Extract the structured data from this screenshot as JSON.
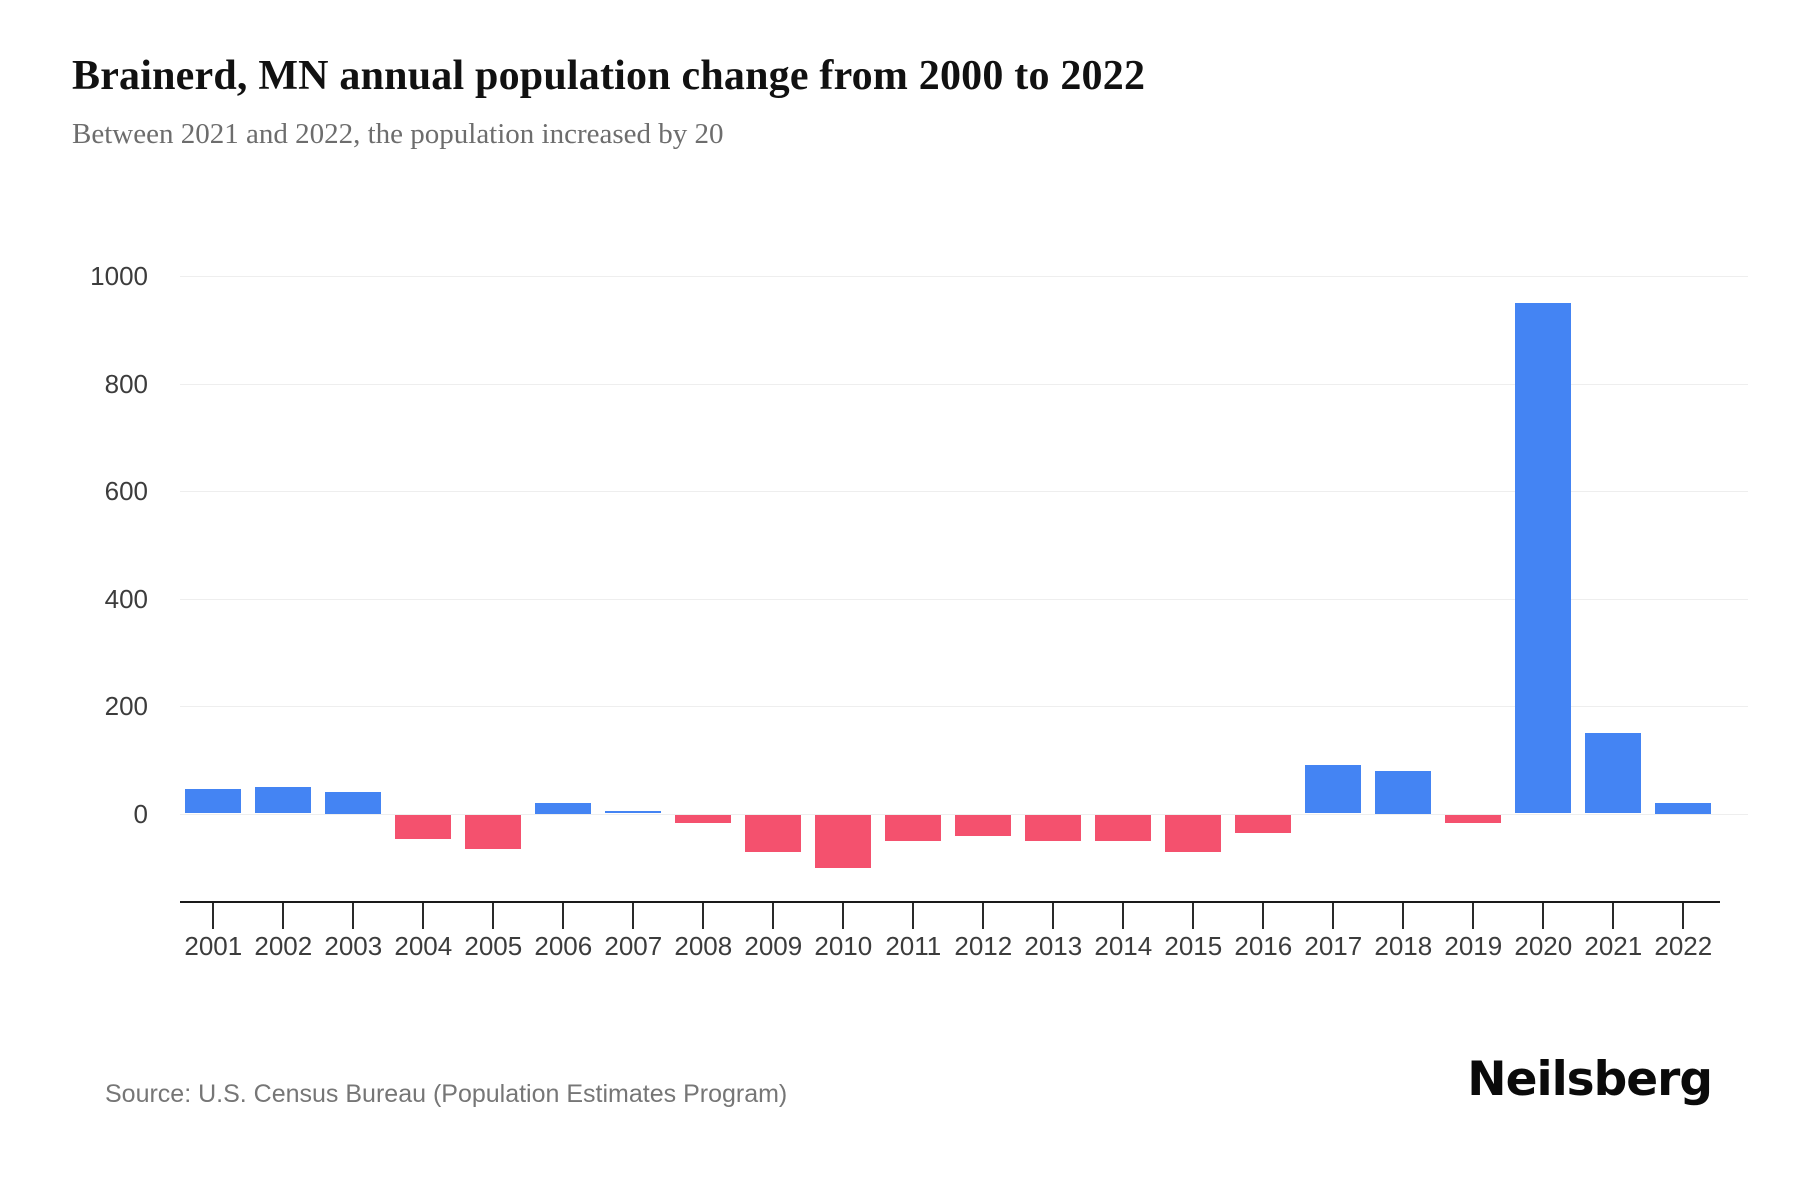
{
  "header": {
    "title": "Brainerd, MN annual population change from 2000 to 2022",
    "subtitle": "Between 2021 and 2022, the population increased by 20"
  },
  "footer": {
    "source": "Source: U.S. Census Bureau (Population Estimates Program)",
    "brand": "Neilsberg"
  },
  "chart_data": {
    "type": "bar",
    "title": "Brainerd, MN annual population change from 2000 to 2022",
    "subtitle": "Between 2021 and 2022, the population increased by 20",
    "categories": [
      "2001",
      "2002",
      "2003",
      "2004",
      "2005",
      "2006",
      "2007",
      "2008",
      "2009",
      "2010",
      "2011",
      "2012",
      "2013",
      "2014",
      "2015",
      "2016",
      "2017",
      "2018",
      "2019",
      "2020",
      "2021",
      "2022"
    ],
    "values": [
      45,
      50,
      40,
      -45,
      -65,
      20,
      5,
      -15,
      -70,
      -100,
      -50,
      -40,
      -50,
      -50,
      -70,
      -35,
      90,
      80,
      -15,
      950,
      150,
      20
    ],
    "xlabel": "",
    "ylabel": "",
    "yticks": [
      0,
      200,
      400,
      600,
      800,
      1000
    ],
    "ylim": [
      -165,
      1000
    ],
    "grid": "horizontal-only",
    "legend": "none",
    "colors": {
      "positive": "#4484f3",
      "negative": "#f4516e"
    }
  }
}
